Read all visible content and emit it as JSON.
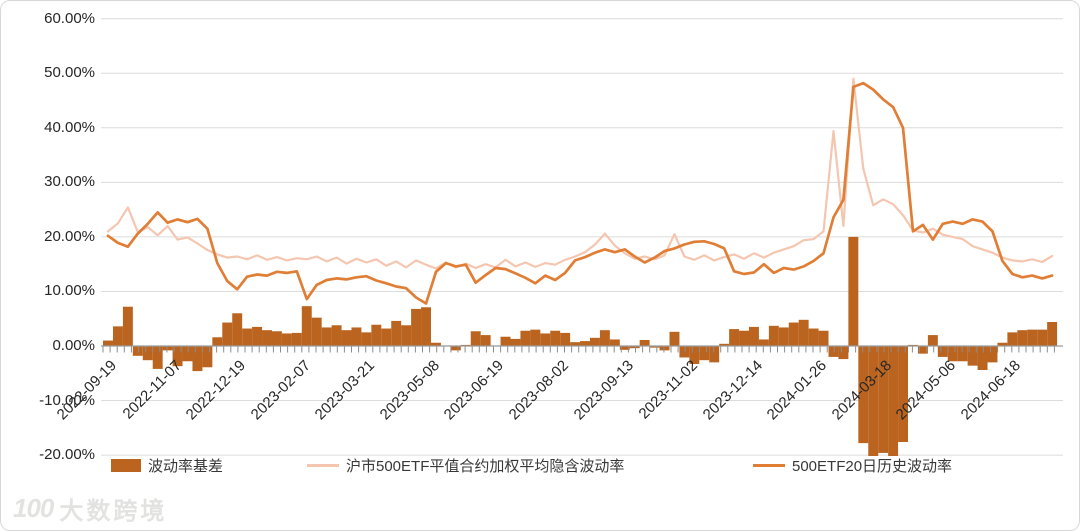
{
  "watermark": {
    "logo": "100",
    "text": "大数跨境"
  },
  "legend": {
    "items": [
      {
        "label": "波动率基差",
        "type": "bar",
        "color": "#BA641F"
      },
      {
        "label": "沪市500ETF平值合约加权平均隐含波动率",
        "type": "line",
        "color": "#F4C6B0"
      },
      {
        "label": "500ETF20日历史波动率",
        "type": "line",
        "color": "#E07E35"
      }
    ]
  },
  "chart_data": {
    "type": "combo-bar-line",
    "title": "",
    "xlabel": "",
    "ylabel": "",
    "ylim": [
      -20,
      60
    ],
    "grid": "horizontal",
    "legend_position": "bottom",
    "y_ticks": [
      {
        "label": "60.00%",
        "value": 60
      },
      {
        "label": "50.00%",
        "value": 50
      },
      {
        "label": "40.00%",
        "value": 40
      },
      {
        "label": "30.00%",
        "value": 30
      },
      {
        "label": "20.00%",
        "value": 20
      },
      {
        "label": "10.00%",
        "value": 10
      },
      {
        "label": "0.00%",
        "value": 0
      },
      {
        "label": "-10.00%",
        "value": -10
      },
      {
        "label": "-20.00%",
        "value": -20
      }
    ],
    "x_tick_labels": [
      "2022-09-19",
      "2022-11-07",
      "2022-12-19",
      "2023-02-07",
      "2023-03-21",
      "2023-05-08",
      "2023-06-19",
      "2023-08-02",
      "2023-09-13",
      "2023-11-02",
      "2023-12-14",
      "2024-01-26",
      "2024-03-18",
      "2024-05-06",
      "2024-06-18"
    ],
    "x_unit": "weekly samples from 2022-09-19 to 2024-07-15",
    "series": [
      {
        "name": "波动率基差",
        "type": "bar",
        "color": "#BA641F",
        "unit": "%",
        "values": [
          1.0,
          3.6,
          7.2,
          -1.8,
          -2.6,
          -4.2,
          -0.8,
          -3.7,
          -2.8,
          -4.6,
          -3.9,
          1.6,
          4.3,
          6.0,
          3.2,
          3.5,
          2.9,
          2.7,
          2.3,
          2.4,
          7.3,
          5.2,
          3.4,
          3.8,
          2.9,
          3.4,
          2.5,
          3.9,
          3.2,
          4.6,
          3.8,
          6.8,
          7.1,
          0.6,
          0.1,
          -0.8,
          0.2,
          2.7,
          2.0,
          0.1,
          1.7,
          1.3,
          2.8,
          3.0,
          2.3,
          2.8,
          2.4,
          0.7,
          0.9,
          1.5,
          2.9,
          1.2,
          -0.7,
          -0.4,
          1.1,
          -0.3,
          -0.8,
          2.6,
          -2.1,
          -3.3,
          -2.6,
          -3.0,
          0.4,
          3.1,
          2.8,
          3.5,
          1.2,
          3.7,
          3.4,
          4.3,
          4.8,
          3.2,
          2.8,
          -2.0,
          -2.4,
          20.0,
          -17.8,
          -20.2,
          -19.6,
          -20.2,
          -17.6,
          0.2,
          -1.4,
          2.0,
          -2.0,
          -2.8,
          -2.8,
          -3.6,
          -4.4,
          -3.0,
          0.6,
          2.5,
          2.9,
          3.0,
          3.0,
          4.4
        ]
      },
      {
        "name": "沪市500ETF平值合约加权平均隐含波动率",
        "type": "line",
        "color": "#F4C6B0",
        "unit": "%",
        "values": [
          21.0,
          22.5,
          25.4,
          20.9,
          21.8,
          20.3,
          22.0,
          19.5,
          19.9,
          18.8,
          17.6,
          16.8,
          16.2,
          16.4,
          15.9,
          16.6,
          15.8,
          16.3,
          15.7,
          16.1,
          15.9,
          16.4,
          15.5,
          16.2,
          15.1,
          16.0,
          15.3,
          15.9,
          14.7,
          15.5,
          14.4,
          15.7,
          14.9,
          14.2,
          15.3,
          14.4,
          15.1,
          14.3,
          15.0,
          14.4,
          15.8,
          14.6,
          15.3,
          14.5,
          15.2,
          14.9,
          15.8,
          16.4,
          17.2,
          18.6,
          20.6,
          18.4,
          17.0,
          16.0,
          16.4,
          15.9,
          16.6,
          20.5,
          16.4,
          15.8,
          16.6,
          15.7,
          16.3,
          16.8,
          16.0,
          17.0,
          16.2,
          17.1,
          17.7,
          18.3,
          19.4,
          19.6,
          21.0,
          39.4,
          22.0,
          49.0,
          32.5,
          25.8,
          26.9,
          26.0,
          24.0,
          21.2,
          20.8,
          21.5,
          20.4,
          20.0,
          19.6,
          18.3,
          17.7,
          17.1,
          16.2,
          15.7,
          15.5,
          15.9,
          15.4,
          16.5
        ]
      },
      {
        "name": "500ETF20日历史波动率",
        "type": "line",
        "color": "#E07E35",
        "unit": "%",
        "values": [
          20.2,
          18.9,
          18.2,
          20.6,
          22.4,
          24.5,
          22.6,
          23.2,
          22.7,
          23.3,
          21.5,
          15.2,
          11.9,
          10.4,
          12.7,
          13.1,
          12.9,
          13.6,
          13.4,
          13.7,
          8.6,
          11.2,
          12.1,
          12.4,
          12.2,
          12.6,
          12.8,
          12.0,
          11.5,
          10.9,
          10.6,
          8.9,
          7.8,
          13.6,
          15.2,
          14.6,
          14.9,
          11.6,
          13.0,
          14.3,
          14.1,
          13.3,
          12.5,
          11.5,
          12.9,
          12.1,
          13.4,
          15.7,
          16.3,
          17.1,
          17.7,
          17.2,
          17.7,
          16.4,
          15.3,
          16.2,
          17.4,
          17.9,
          18.6,
          19.1,
          19.2,
          18.7,
          17.9,
          13.7,
          13.2,
          13.5,
          15.0,
          13.4,
          14.3,
          14.0,
          14.6,
          15.6,
          17.0,
          23.6,
          26.8,
          47.5,
          48.2,
          47.0,
          45.2,
          43.8,
          40.0,
          21.0,
          22.2,
          19.5,
          22.4,
          22.8,
          22.4,
          23.2,
          22.8,
          21.0,
          15.6,
          13.2,
          12.6,
          12.9,
          12.4,
          12.9
        ]
      }
    ],
    "colors": {
      "grid": "#DCDCDC",
      "zero_axis": "#9B9B9B",
      "tick": "#8C8C8C",
      "text": "#262626"
    }
  }
}
